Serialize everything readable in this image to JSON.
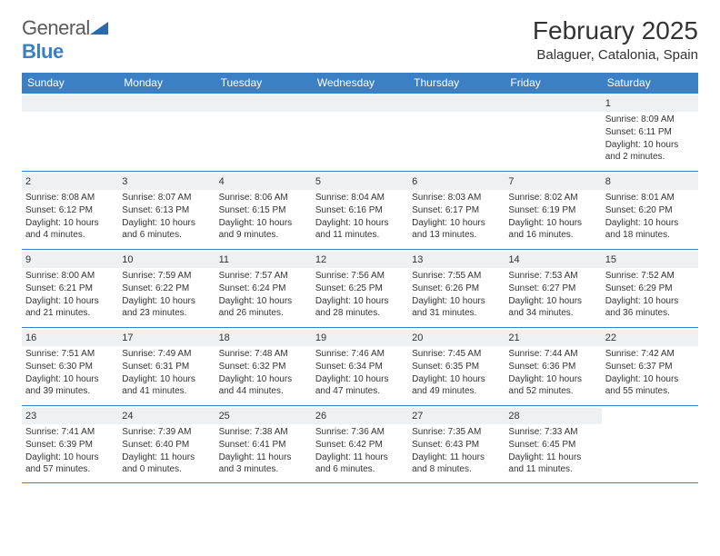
{
  "logo": {
    "word1": "General",
    "word2": "Blue",
    "shape_color": "#2f6aa8"
  },
  "title": "February 2025",
  "location": "Balaguer, Catalonia, Spain",
  "header_bg": "#3b7fc4",
  "weekdays": [
    "Sunday",
    "Monday",
    "Tuesday",
    "Wednesday",
    "Thursday",
    "Friday",
    "Saturday"
  ],
  "grid": {
    "cols": 7,
    "rows": 5,
    "first_weekday_index": 6,
    "days_in_month": 28
  },
  "days": [
    {
      "n": 1,
      "sunrise": "8:09 AM",
      "sunset": "6:11 PM",
      "daylight": "10 hours and 2 minutes."
    },
    {
      "n": 2,
      "sunrise": "8:08 AM",
      "sunset": "6:12 PM",
      "daylight": "10 hours and 4 minutes."
    },
    {
      "n": 3,
      "sunrise": "8:07 AM",
      "sunset": "6:13 PM",
      "daylight": "10 hours and 6 minutes."
    },
    {
      "n": 4,
      "sunrise": "8:06 AM",
      "sunset": "6:15 PM",
      "daylight": "10 hours and 9 minutes."
    },
    {
      "n": 5,
      "sunrise": "8:04 AM",
      "sunset": "6:16 PM",
      "daylight": "10 hours and 11 minutes."
    },
    {
      "n": 6,
      "sunrise": "8:03 AM",
      "sunset": "6:17 PM",
      "daylight": "10 hours and 13 minutes."
    },
    {
      "n": 7,
      "sunrise": "8:02 AM",
      "sunset": "6:19 PM",
      "daylight": "10 hours and 16 minutes."
    },
    {
      "n": 8,
      "sunrise": "8:01 AM",
      "sunset": "6:20 PM",
      "daylight": "10 hours and 18 minutes."
    },
    {
      "n": 9,
      "sunrise": "8:00 AM",
      "sunset": "6:21 PM",
      "daylight": "10 hours and 21 minutes."
    },
    {
      "n": 10,
      "sunrise": "7:59 AM",
      "sunset": "6:22 PM",
      "daylight": "10 hours and 23 minutes."
    },
    {
      "n": 11,
      "sunrise": "7:57 AM",
      "sunset": "6:24 PM",
      "daylight": "10 hours and 26 minutes."
    },
    {
      "n": 12,
      "sunrise": "7:56 AM",
      "sunset": "6:25 PM",
      "daylight": "10 hours and 28 minutes."
    },
    {
      "n": 13,
      "sunrise": "7:55 AM",
      "sunset": "6:26 PM",
      "daylight": "10 hours and 31 minutes."
    },
    {
      "n": 14,
      "sunrise": "7:53 AM",
      "sunset": "6:27 PM",
      "daylight": "10 hours and 34 minutes."
    },
    {
      "n": 15,
      "sunrise": "7:52 AM",
      "sunset": "6:29 PM",
      "daylight": "10 hours and 36 minutes."
    },
    {
      "n": 16,
      "sunrise": "7:51 AM",
      "sunset": "6:30 PM",
      "daylight": "10 hours and 39 minutes."
    },
    {
      "n": 17,
      "sunrise": "7:49 AM",
      "sunset": "6:31 PM",
      "daylight": "10 hours and 41 minutes."
    },
    {
      "n": 18,
      "sunrise": "7:48 AM",
      "sunset": "6:32 PM",
      "daylight": "10 hours and 44 minutes."
    },
    {
      "n": 19,
      "sunrise": "7:46 AM",
      "sunset": "6:34 PM",
      "daylight": "10 hours and 47 minutes."
    },
    {
      "n": 20,
      "sunrise": "7:45 AM",
      "sunset": "6:35 PM",
      "daylight": "10 hours and 49 minutes."
    },
    {
      "n": 21,
      "sunrise": "7:44 AM",
      "sunset": "6:36 PM",
      "daylight": "10 hours and 52 minutes."
    },
    {
      "n": 22,
      "sunrise": "7:42 AM",
      "sunset": "6:37 PM",
      "daylight": "10 hours and 55 minutes."
    },
    {
      "n": 23,
      "sunrise": "7:41 AM",
      "sunset": "6:39 PM",
      "daylight": "10 hours and 57 minutes."
    },
    {
      "n": 24,
      "sunrise": "7:39 AM",
      "sunset": "6:40 PM",
      "daylight": "11 hours and 0 minutes."
    },
    {
      "n": 25,
      "sunrise": "7:38 AM",
      "sunset": "6:41 PM",
      "daylight": "11 hours and 3 minutes."
    },
    {
      "n": 26,
      "sunrise": "7:36 AM",
      "sunset": "6:42 PM",
      "daylight": "11 hours and 6 minutes."
    },
    {
      "n": 27,
      "sunrise": "7:35 AM",
      "sunset": "6:43 PM",
      "daylight": "11 hours and 8 minutes."
    },
    {
      "n": 28,
      "sunrise": "7:33 AM",
      "sunset": "6:45 PM",
      "daylight": "11 hours and 11 minutes."
    }
  ],
  "labels": {
    "sunrise": "Sunrise:",
    "sunset": "Sunset:",
    "daylight": "Daylight:"
  }
}
